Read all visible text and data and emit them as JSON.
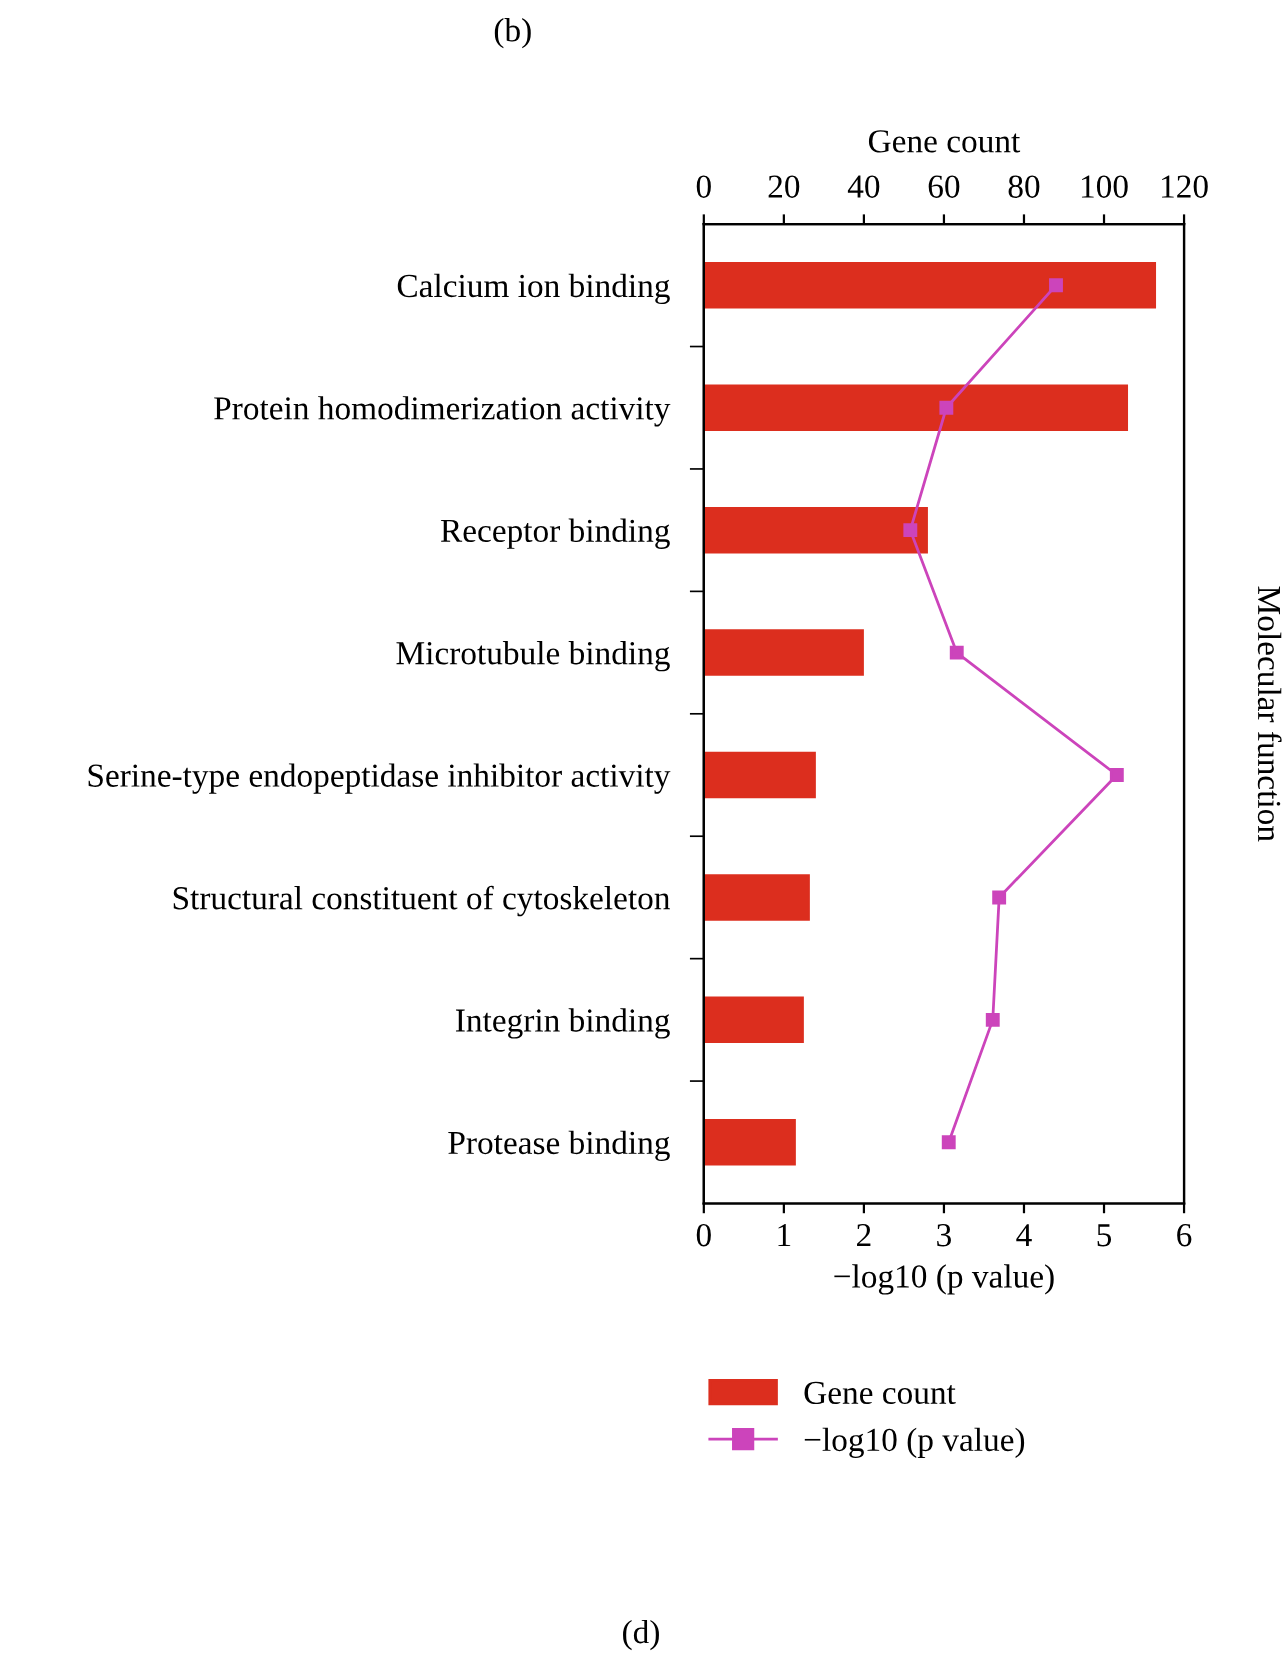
{
  "chart_data": {
    "type": "bar",
    "orientation": "horizontal",
    "categories": [
      "Calcium ion binding",
      "Protein homodimerization activity",
      "Receptor binding",
      "Microtubule binding",
      "Serine-type endopeptidase inhibitor activity",
      "Structural constituent of cytoskeleton",
      "Integrin binding",
      "Protease binding"
    ],
    "series": [
      {
        "name": "Gene count",
        "axis": "x2",
        "color": "#dc2e1e",
        "values": [
          113,
          106,
          56,
          40,
          28,
          26.5,
          25,
          23
        ]
      },
      {
        "name": "−log10 (p value)",
        "type": "line",
        "color": "#cc44bb",
        "marker": "square",
        "values": [
          4.4,
          3.03,
          2.58,
          3.16,
          5.16,
          3.69,
          3.61,
          3.06
        ]
      }
    ],
    "xlabel": "−log10 (p value)",
    "x2label": "Gene count",
    "ylabel": "Molecular function",
    "xlim": [
      0,
      6
    ],
    "xticks": [
      0,
      1,
      2,
      3,
      4,
      5,
      6
    ],
    "x2lim": [
      0,
      120
    ],
    "x2ticks": [
      0,
      20,
      40,
      60,
      80,
      100,
      120
    ],
    "legend": "bottom",
    "grid": false,
    "annotations": [
      "(b)",
      "(d)"
    ]
  }
}
